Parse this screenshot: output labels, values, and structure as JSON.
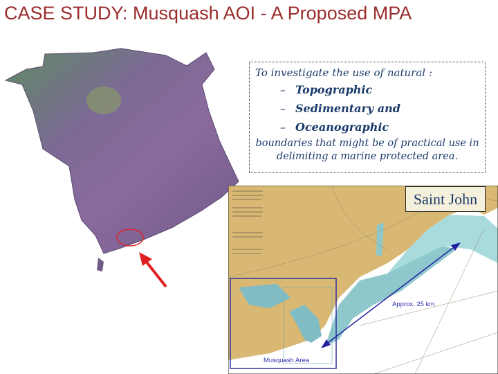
{
  "title": "CASE STUDY: Musquash AOI - A Proposed MPA",
  "textbox": {
    "intro": "To investigate the use of natural :",
    "items": [
      {
        "dash": "–",
        "label": "Topographic"
      },
      {
        "dash": "–",
        "label": "Sedimentary and"
      },
      {
        "dash": "–",
        "label": "Oceanographic"
      }
    ],
    "outro_line1": "boundaries  that might be of practical use in",
    "outro_line2": "delimiting a marine protected area."
  },
  "chart_map": {
    "city_label": "Saint John",
    "distance_label": "Approx. 25 km",
    "area_label": "Musquash Area"
  },
  "colors": {
    "title": "#9b2d2d",
    "text": "#1b3a6b",
    "highlight": "#e02020",
    "arrow": "#2020a0"
  }
}
